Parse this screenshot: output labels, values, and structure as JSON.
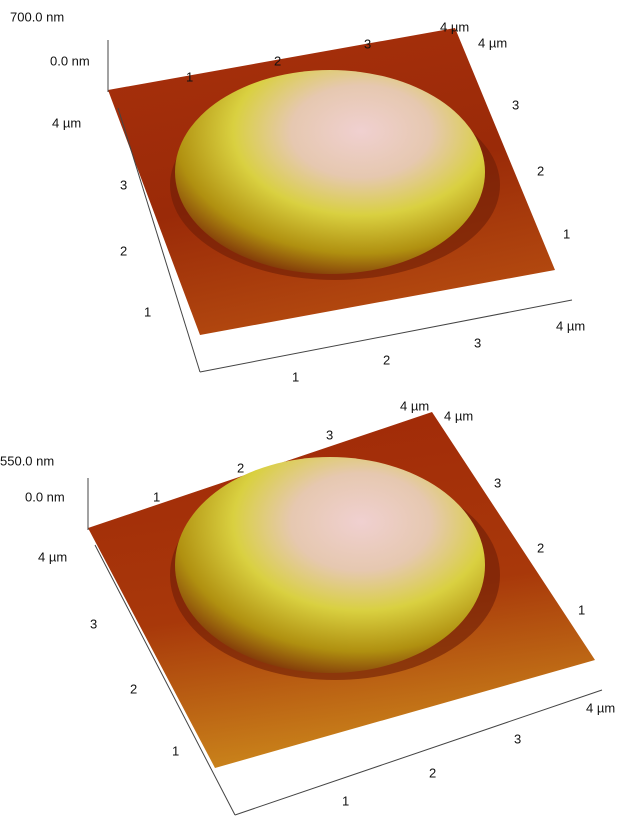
{
  "panels": [
    {
      "z_max": "700.0 nm",
      "z_min": "0.0 nm",
      "x_back_ticks": [
        "1",
        "2",
        "3",
        "4 µm"
      ],
      "y_right_ticks": [
        "4 µm",
        "3",
        "2",
        "1"
      ],
      "y_left_ticks": [
        "4 µm",
        "3",
        "2",
        "1"
      ],
      "x_front_ticks": [
        "1",
        "2",
        "3",
        "4 µm"
      ]
    },
    {
      "z_max": "550.0 nm",
      "z_min": "0.0 nm",
      "x_back_ticks": [
        "1",
        "2",
        "3",
        "4 µm"
      ],
      "y_right_ticks": [
        "4 µm",
        "3",
        "2",
        "1"
      ],
      "y_left_ticks": [
        "4 µm",
        "3",
        "2",
        "1"
      ],
      "x_front_ticks": [
        "1",
        "2",
        "3",
        "4 µm"
      ]
    }
  ]
}
